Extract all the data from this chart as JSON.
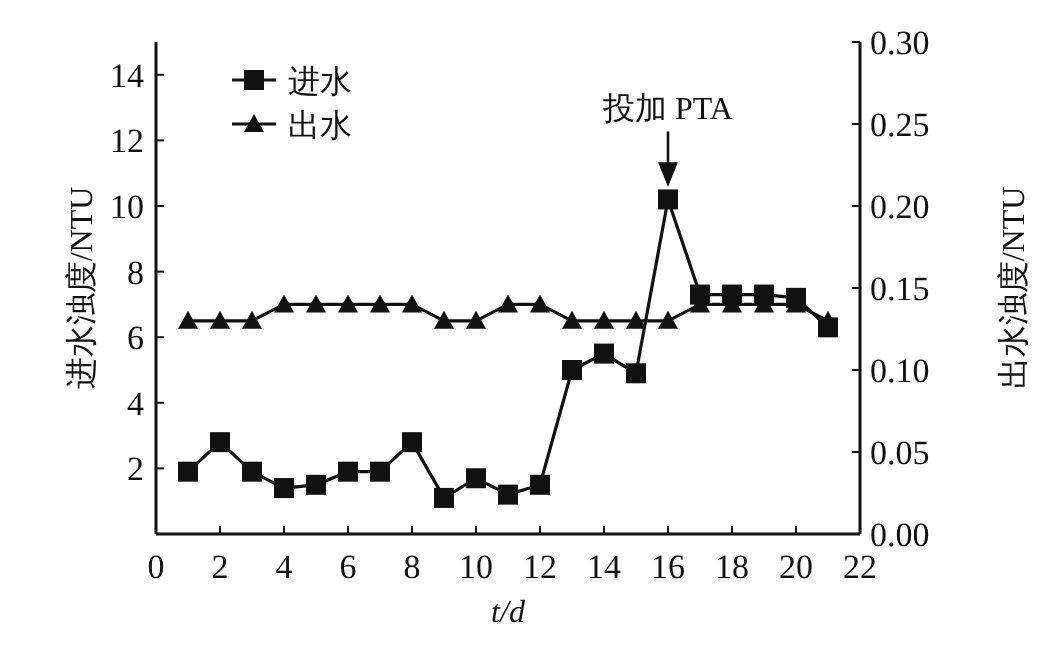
{
  "chart_data": {
    "type": "line",
    "xlabel": "t/d",
    "ylabel": "进水浊度/NTU",
    "y2label": "出水浊度/NTU",
    "x": [
      1,
      2,
      3,
      4,
      5,
      6,
      7,
      8,
      9,
      10,
      11,
      12,
      13,
      14,
      15,
      16,
      17,
      18,
      19,
      20,
      21
    ],
    "series": [
      {
        "name": "进水",
        "color": "#111111",
        "marker": "square",
        "values": [
          1.9,
          2.8,
          1.9,
          1.4,
          1.5,
          1.9,
          1.9,
          2.8,
          1.1,
          1.7,
          1.2,
          1.5,
          5.0,
          5.5,
          4.9,
          10.2,
          7.3,
          7.3,
          7.3,
          7.2,
          6.3
        ]
      },
      {
        "name": "出水",
        "color": "#111111",
        "marker": "triangle",
        "axis": "y2",
        "values": [
          0.13,
          0.13,
          0.13,
          0.14,
          0.14,
          0.14,
          0.14,
          0.14,
          0.13,
          0.13,
          0.14,
          0.14,
          0.13,
          0.13,
          0.13,
          0.13,
          0.14,
          0.14,
          0.14,
          0.14,
          0.13
        ]
      }
    ],
    "xlim": [
      0,
      22
    ],
    "xticks": [
      0,
      2,
      4,
      6,
      8,
      10,
      12,
      14,
      16,
      18,
      20,
      22
    ],
    "ylim": [
      0,
      15
    ],
    "yticks": [
      2,
      4,
      6,
      8,
      10,
      12,
      14
    ],
    "y2lim": [
      0,
      0.3
    ],
    "y2ticks": [
      {
        "value": 0,
        "label": "0.00"
      },
      {
        "value": 0.05,
        "label": "0.05"
      },
      {
        "value": 0.1,
        "label": "0.10"
      },
      {
        "value": 0.15,
        "label": "0.15"
      },
      {
        "value": 0.2,
        "label": "0.20"
      },
      {
        "value": 0.25,
        "label": "0.25"
      },
      {
        "value": 0.3,
        "label": "0.30"
      }
    ],
    "annotations": [
      {
        "text": "投加 PTA",
        "x": 16,
        "y": 10.2
      }
    ],
    "legend": "top left",
    "grid": false
  }
}
